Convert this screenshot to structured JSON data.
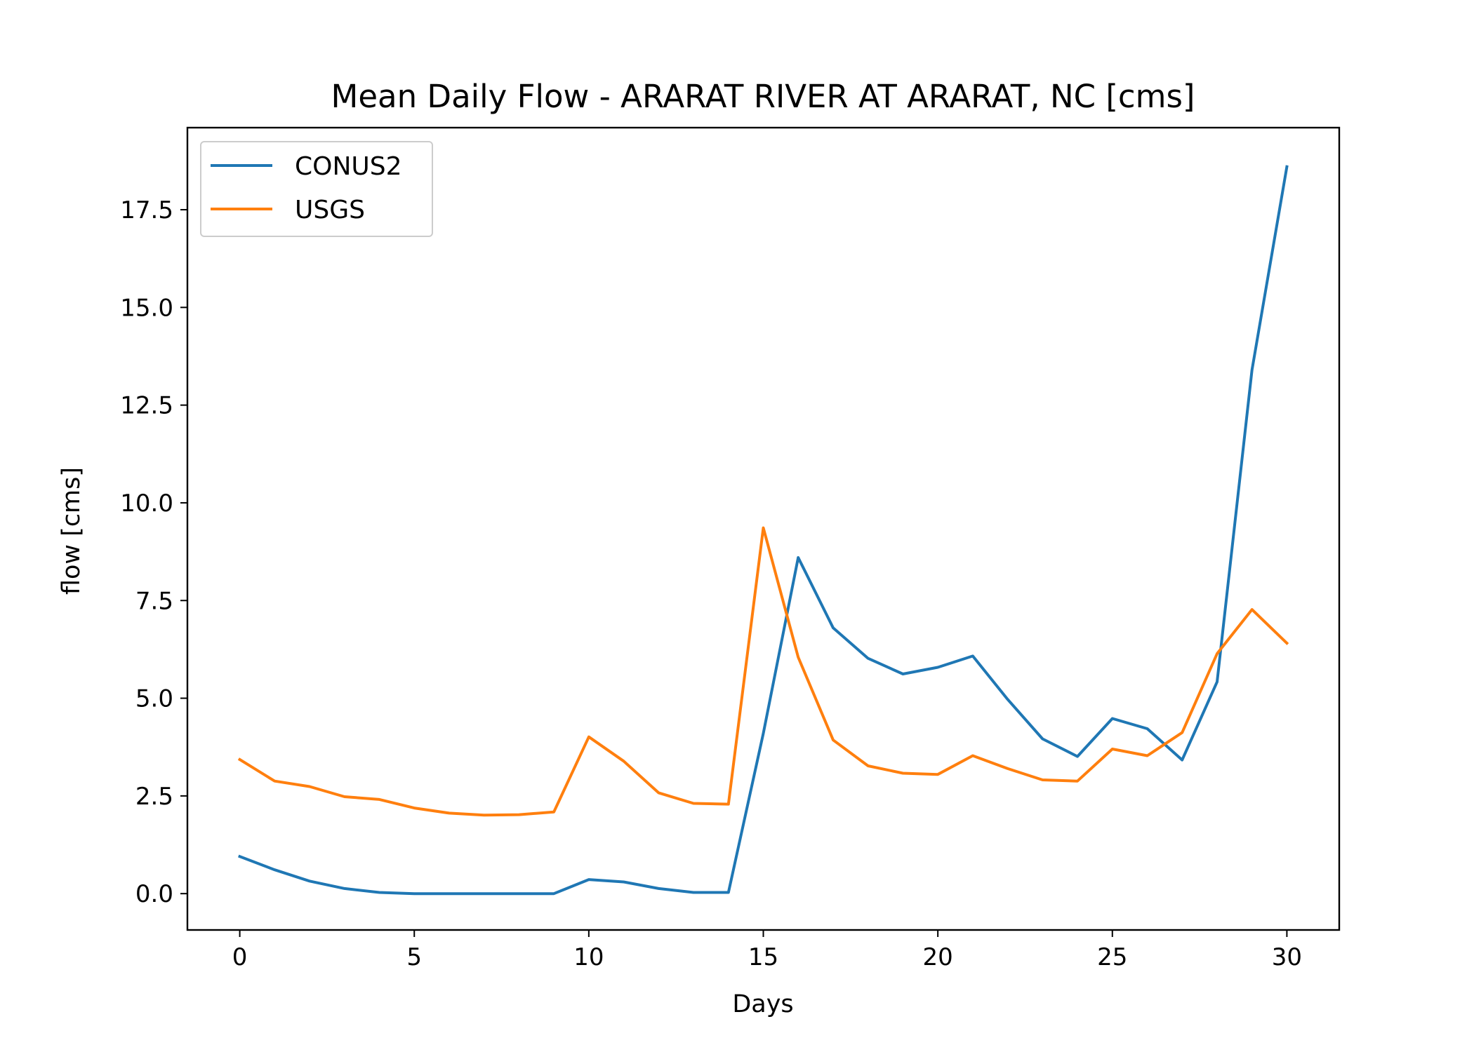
{
  "chart_data": {
    "type": "line",
    "title": "Mean Daily Flow - ARARAT RIVER AT ARARAT, NC [cms]",
    "xlabel": "Days",
    "ylabel": "flow [cms]",
    "xlim": [
      -1.5,
      31.5
    ],
    "ylim": [
      -0.93,
      19.6
    ],
    "xticks": [
      0,
      5,
      10,
      15,
      20,
      25,
      30
    ],
    "yticks": [
      0.0,
      2.5,
      5.0,
      7.5,
      10.0,
      12.5,
      15.0,
      17.5
    ],
    "ytick_labels": [
      "0.0",
      "2.5",
      "5.0",
      "7.5",
      "10.0",
      "12.5",
      "15.0",
      "17.5"
    ],
    "grid": false,
    "legend_position": "upper-left",
    "x": [
      0,
      1,
      2,
      3,
      4,
      5,
      6,
      7,
      8,
      9,
      10,
      11,
      12,
      13,
      14,
      15,
      16,
      17,
      18,
      19,
      20,
      21,
      22,
      23,
      24,
      25,
      26,
      27,
      28,
      29,
      30
    ],
    "series": [
      {
        "name": "CONUS2",
        "color": "#1f77b4",
        "values": [
          0.95,
          0.61,
          0.32,
          0.13,
          0.03,
          0.0,
          0.0,
          0.0,
          0.0,
          0.0,
          0.36,
          0.3,
          0.13,
          0.03,
          0.03,
          4.1,
          8.6,
          6.8,
          6.02,
          5.62,
          5.79,
          6.08,
          4.97,
          3.96,
          3.51,
          4.48,
          4.22,
          3.42,
          5.42,
          13.4,
          18.6
        ]
      },
      {
        "name": "USGS",
        "color": "#ff7f0e",
        "values": [
          3.43,
          2.88,
          2.74,
          2.48,
          2.41,
          2.19,
          2.06,
          2.01,
          2.02,
          2.09,
          4.01,
          3.39,
          2.58,
          2.31,
          2.29,
          9.36,
          6.05,
          3.93,
          3.27,
          3.08,
          3.05,
          3.53,
          3.2,
          2.91,
          2.88,
          3.7,
          3.53,
          4.12,
          6.14,
          7.27,
          6.41
        ]
      }
    ]
  }
}
